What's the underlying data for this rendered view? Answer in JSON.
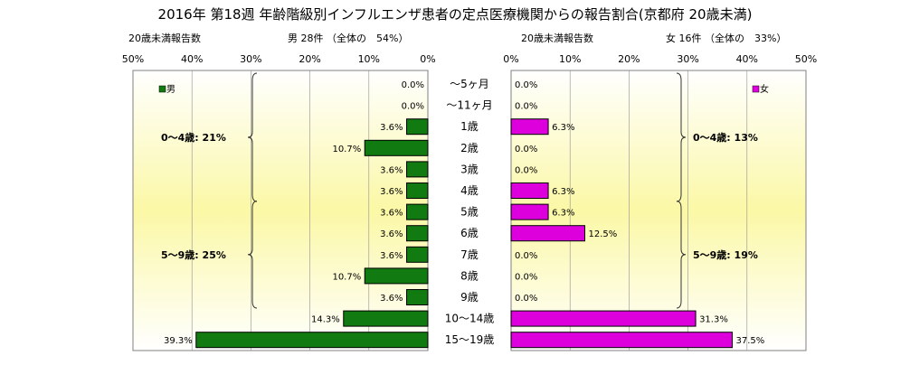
{
  "title": "2016年 第18週 年齢階級別インフルエンザ患者の定点医療機関からの報告割合(京都府 20歳未満)",
  "chart_data": {
    "type": "bar",
    "orientation": "horizontal-population-pyramid",
    "categories": [
      "〜5ヶ月",
      "〜11ヶ月",
      "1歳",
      "2歳",
      "3歳",
      "4歳",
      "5歳",
      "6歳",
      "7歳",
      "8歳",
      "9歳",
      "10〜14歳",
      "15〜19歳"
    ],
    "series": [
      {
        "name": "男",
        "side": "left",
        "color": "#117a11",
        "values": [
          0.0,
          0.0,
          3.6,
          10.7,
          3.6,
          3.6,
          3.6,
          3.6,
          3.6,
          10.7,
          3.6,
          14.3,
          39.3
        ],
        "labels": [
          "0.0%",
          "0.0%",
          "3.6%",
          "10.7%",
          "3.6%",
          "3.6%",
          "3.6%",
          "3.6%",
          "3.6%",
          "10.7%",
          "3.6%",
          "14.3%",
          "39.3%"
        ]
      },
      {
        "name": "女",
        "side": "right",
        "color": "#dd00dd",
        "values": [
          0.0,
          0.0,
          6.3,
          0.0,
          0.0,
          6.3,
          6.3,
          12.5,
          0.0,
          0.0,
          0.0,
          31.3,
          37.5
        ],
        "labels": [
          "0.0%",
          "0.0%",
          "6.3%",
          "0.0%",
          "0.0%",
          "6.3%",
          "6.3%",
          "12.5%",
          "0.0%",
          "0.0%",
          "0.0%",
          "31.3%",
          "37.5%"
        ]
      }
    ],
    "xlim": [
      0,
      50
    ],
    "left_panel": {
      "header_left": "20歳未満報告数",
      "header_right": "男 28件 （全体の　54%）",
      "ticks": [
        "50%",
        "40%",
        "30%",
        "20%",
        "10%",
        "0%"
      ],
      "legend": "男",
      "brace_groups": [
        {
          "label": "0〜4歳: 21%",
          "from": 0,
          "to": 5
        },
        {
          "label": "5〜9歳: 25%",
          "from": 6,
          "to": 10
        }
      ]
    },
    "right_panel": {
      "header_left": "20歳未満報告数",
      "header_right": "女 16件 （全体の　33%）",
      "ticks": [
        "0%",
        "10%",
        "20%",
        "30%",
        "40%",
        "50%"
      ],
      "legend": "女",
      "brace_groups": [
        {
          "label": "0〜4歳: 13%",
          "from": 0,
          "to": 5
        },
        {
          "label": "5〜9歳: 19%",
          "from": 6,
          "to": 10
        }
      ]
    },
    "grid": true,
    "legend_position": "top-left (男), top-right (女)"
  }
}
